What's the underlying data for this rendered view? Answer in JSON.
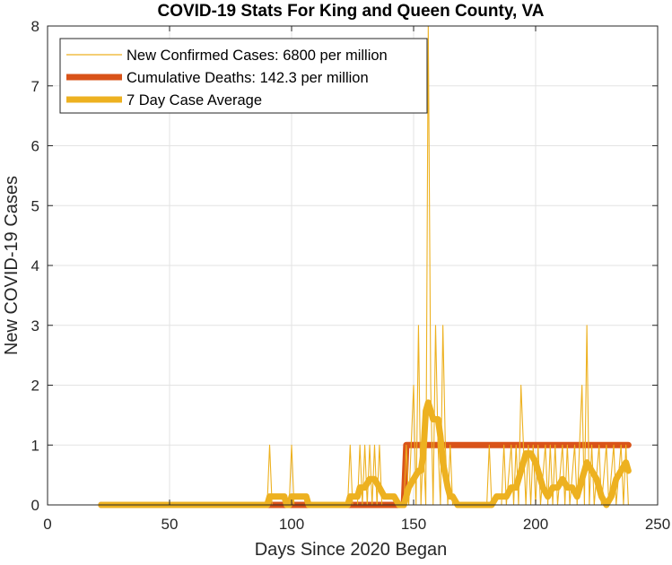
{
  "chart_data": {
    "type": "line",
    "title": "COVID-19 Stats For King and Queen County, VA",
    "xlabel": "Days Since 2020 Began",
    "ylabel": "New COVID-19 Cases",
    "xlim": [
      0,
      250
    ],
    "ylim": [
      0,
      8
    ],
    "xticks": [
      0,
      50,
      100,
      150,
      200,
      250
    ],
    "yticks": [
      0,
      1,
      2,
      3,
      4,
      5,
      6,
      7,
      8
    ],
    "grid": true,
    "legend_position": "top-left",
    "series": [
      {
        "name": "New Confirmed Cases: 6800 per million",
        "color": "#EDB120",
        "style": "thin",
        "points": [
          [
            22,
            0
          ],
          [
            90,
            0
          ],
          [
            91,
            1
          ],
          [
            92,
            0
          ],
          [
            99,
            0
          ],
          [
            100,
            1
          ],
          [
            101,
            0
          ],
          [
            123,
            0
          ],
          [
            124,
            1
          ],
          [
            125,
            0
          ],
          [
            127,
            0
          ],
          [
            128,
            1
          ],
          [
            129,
            0
          ],
          [
            130,
            1
          ],
          [
            131,
            0
          ],
          [
            132,
            1
          ],
          [
            133,
            0
          ],
          [
            134,
            1
          ],
          [
            135,
            0
          ],
          [
            136,
            1
          ],
          [
            137,
            0
          ],
          [
            146,
            0
          ],
          [
            147,
            1
          ],
          [
            148,
            0
          ],
          [
            150,
            2
          ],
          [
            151,
            0
          ],
          [
            152,
            3
          ],
          [
            153,
            0
          ],
          [
            154,
            1
          ],
          [
            155,
            0
          ],
          [
            156,
            8
          ],
          [
            157,
            2
          ],
          [
            158,
            0
          ],
          [
            159,
            3
          ],
          [
            160,
            1
          ],
          [
            161,
            0
          ],
          [
            162,
            3
          ],
          [
            163,
            1
          ],
          [
            164,
            0
          ],
          [
            165,
            1
          ],
          [
            166,
            0
          ],
          [
            180,
            0
          ],
          [
            181,
            1
          ],
          [
            182,
            0
          ],
          [
            186,
            0
          ],
          [
            187,
            1
          ],
          [
            188,
            0
          ],
          [
            190,
            1
          ],
          [
            191,
            0
          ],
          [
            192,
            1
          ],
          [
            193,
            0
          ],
          [
            194,
            2
          ],
          [
            195,
            1
          ],
          [
            196,
            0
          ],
          [
            197,
            1
          ],
          [
            198,
            0
          ],
          [
            199,
            1
          ],
          [
            200,
            0
          ],
          [
            201,
            1
          ],
          [
            202,
            0
          ],
          [
            204,
            1
          ],
          [
            205,
            0
          ],
          [
            206,
            1
          ],
          [
            207,
            0
          ],
          [
            208,
            1
          ],
          [
            209,
            0
          ],
          [
            211,
            1
          ],
          [
            212,
            0
          ],
          [
            213,
            1
          ],
          [
            214,
            0
          ],
          [
            216,
            1
          ],
          [
            217,
            0
          ],
          [
            219,
            2
          ],
          [
            220,
            0
          ],
          [
            221,
            3
          ],
          [
            222,
            0
          ],
          [
            223,
            1
          ],
          [
            224,
            0
          ],
          [
            226,
            1
          ],
          [
            227,
            0
          ],
          [
            229,
            1
          ],
          [
            230,
            0
          ],
          [
            232,
            1
          ],
          [
            233,
            0
          ],
          [
            235,
            1
          ],
          [
            236,
            0
          ],
          [
            237,
            1
          ],
          [
            238,
            0
          ]
        ]
      },
      {
        "name": "Cumulative Deaths: 142.3 per million",
        "color": "#D95319",
        "style": "thick",
        "points": [
          [
            22,
            0
          ],
          [
            146,
            0
          ],
          [
            147,
            1
          ],
          [
            238,
            1
          ]
        ]
      },
      {
        "name": "7 Day Case Average",
        "color": "#EDB120",
        "style": "thick",
        "points": [
          [
            22,
            0
          ],
          [
            90,
            0
          ],
          [
            91,
            0.14
          ],
          [
            97,
            0.14
          ],
          [
            98,
            0
          ],
          [
            99,
            0
          ],
          [
            100,
            0.14
          ],
          [
            106,
            0.14
          ],
          [
            107,
            0
          ],
          [
            123,
            0
          ],
          [
            124,
            0.14
          ],
          [
            127,
            0.14
          ],
          [
            128,
            0.29
          ],
          [
            130,
            0.29
          ],
          [
            132,
            0.43
          ],
          [
            134,
            0.43
          ],
          [
            136,
            0.29
          ],
          [
            138,
            0.14
          ],
          [
            140,
            0.14
          ],
          [
            142,
            0.14
          ],
          [
            144,
            0
          ],
          [
            146,
            0
          ],
          [
            147,
            0.14
          ],
          [
            148,
            0.29
          ],
          [
            150,
            0.43
          ],
          [
            152,
            0.57
          ],
          [
            153,
            0.57
          ],
          [
            154,
            0.86
          ],
          [
            155,
            1.57
          ],
          [
            156,
            1.71
          ],
          [
            157,
            1.57
          ],
          [
            158,
            1.43
          ],
          [
            160,
            1.43
          ],
          [
            161,
            1.14
          ],
          [
            162,
            0.71
          ],
          [
            164,
            0.29
          ],
          [
            165,
            0.14
          ],
          [
            166,
            0.14
          ],
          [
            168,
            0
          ],
          [
            182,
            0
          ],
          [
            184,
            0.14
          ],
          [
            186,
            0.14
          ],
          [
            188,
            0.14
          ],
          [
            190,
            0.29
          ],
          [
            192,
            0.29
          ],
          [
            194,
            0.57
          ],
          [
            196,
            0.86
          ],
          [
            198,
            0.86
          ],
          [
            200,
            0.71
          ],
          [
            202,
            0.43
          ],
          [
            203,
            0.29
          ],
          [
            205,
            0.14
          ],
          [
            207,
            0.29
          ],
          [
            209,
            0.29
          ],
          [
            211,
            0.43
          ],
          [
            213,
            0.29
          ],
          [
            215,
            0.29
          ],
          [
            217,
            0.14
          ],
          [
            219,
            0.43
          ],
          [
            220,
            0.57
          ],
          [
            221,
            0.71
          ],
          [
            223,
            0.57
          ],
          [
            225,
            0.43
          ],
          [
            227,
            0.14
          ],
          [
            229,
            0
          ],
          [
            231,
            0.14
          ],
          [
            233,
            0.43
          ],
          [
            235,
            0.57
          ],
          [
            237,
            0.71
          ],
          [
            238,
            0.57
          ]
        ]
      }
    ]
  }
}
